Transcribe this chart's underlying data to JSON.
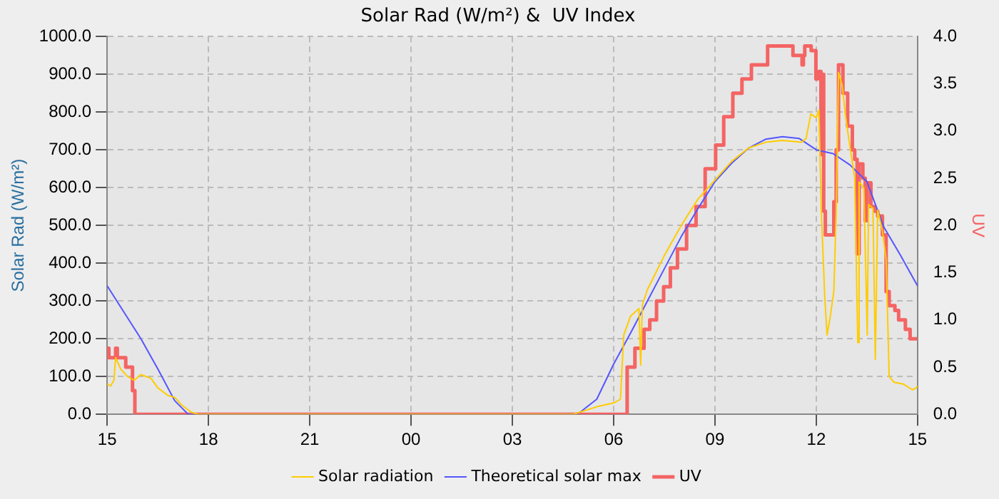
{
  "chart_data": {
    "type": "line",
    "title": "Solar Rad (W/m²) &  UV Index",
    "ylabel": "Solar Rad (W/m²)",
    "y2label": "UV",
    "xlim": [
      15,
      39
    ],
    "xticks": [
      {
        "value": 15,
        "label": "15"
      },
      {
        "value": 18,
        "label": "18"
      },
      {
        "value": 21,
        "label": "21"
      },
      {
        "value": 24,
        "label": "00"
      },
      {
        "value": 27,
        "label": "03"
      },
      {
        "value": 30,
        "label": "06"
      },
      {
        "value": 33,
        "label": "09"
      },
      {
        "value": 36,
        "label": "12"
      },
      {
        "value": 39,
        "label": "15"
      }
    ],
    "ylim": [
      0,
      1000
    ],
    "yticks": [
      {
        "value": 0,
        "label": "0.0"
      },
      {
        "value": 100,
        "label": "100.0"
      },
      {
        "value": 200,
        "label": "200.0"
      },
      {
        "value": 300,
        "label": "300.0"
      },
      {
        "value": 400,
        "label": "400.0"
      },
      {
        "value": 500,
        "label": "500.0"
      },
      {
        "value": 600,
        "label": "600.0"
      },
      {
        "value": 700,
        "label": "700.0"
      },
      {
        "value": 800,
        "label": "800.0"
      },
      {
        "value": 900,
        "label": "900.0"
      },
      {
        "value": 1000,
        "label": "1000.0"
      }
    ],
    "y2lim": [
      0,
      4
    ],
    "y2ticks": [
      {
        "value": 0,
        "label": "0.0"
      },
      {
        "value": 0.5,
        "label": "0.5"
      },
      {
        "value": 1,
        "label": "1.0"
      },
      {
        "value": 1.5,
        "label": "1.5"
      },
      {
        "value": 2,
        "label": "2.0"
      },
      {
        "value": 2.5,
        "label": "2.5"
      },
      {
        "value": 3,
        "label": "3.0"
      },
      {
        "value": 3.5,
        "label": "3.5"
      },
      {
        "value": 4,
        "label": "4.0"
      }
    ],
    "grid": true,
    "legend": "bottom",
    "marker": "none",
    "series": [
      {
        "name": "Solar radiation",
        "color": "#ffcc00",
        "x": [
          15,
          15.1,
          15.2,
          15.25,
          15.4,
          15.6,
          15.8,
          16,
          16.3,
          16.5,
          16.8,
          17,
          17.2,
          17.5,
          17.7,
          28.8,
          29.5,
          30,
          30.2,
          30.3,
          30.5,
          30.75,
          30.8,
          30.85,
          31,
          31.5,
          32,
          32.5,
          33,
          33.5,
          34,
          34.5,
          35,
          35.56,
          35.7,
          35.84,
          36,
          36.08,
          36.15,
          36.25,
          36.32,
          36.41,
          36.52,
          36.59,
          36.66,
          36.77,
          36.86,
          36.97,
          37.14,
          37.23,
          37.27,
          37.41,
          37.51,
          37.55,
          37.68,
          37.75,
          37.82,
          37.96,
          38.07,
          38.16,
          38.3,
          38.58,
          38.85,
          38.96,
          39
        ],
        "values": [
          80,
          75,
          90,
          150,
          120,
          100,
          90,
          105,
          95,
          70,
          50,
          45,
          25,
          5,
          0,
          0,
          20,
          30,
          40,
          210,
          260,
          280,
          130,
          290,
          330,
          420,
          500,
          570,
          620,
          670,
          705,
          720,
          725,
          720,
          730,
          795,
          785,
          805,
          540,
          315,
          210,
          255,
          325,
          530,
          905,
          870,
          795,
          725,
          625,
          190,
          615,
          600,
          210,
          555,
          545,
          145,
          540,
          485,
          410,
          100,
          85,
          80,
          65,
          70,
          75
        ]
      },
      {
        "name": "Theoretical solar max",
        "color": "#5555ff",
        "x": [
          15,
          16,
          16.5,
          17,
          17.4,
          28.8,
          29,
          29.5,
          30,
          30.5,
          31,
          31.5,
          32,
          32.5,
          33,
          33.5,
          34,
          34.5,
          35,
          35.5,
          36,
          36.5,
          37,
          37.5,
          38,
          38.5,
          39
        ],
        "values": [
          340,
          200,
          120,
          36,
          0,
          0,
          5,
          40,
          133,
          215,
          300,
          385,
          470,
          545,
          616,
          665,
          705,
          728,
          735,
          730,
          700,
          690,
          660,
          616,
          496,
          420,
          340
        ]
      },
      {
        "name": "UV",
        "color": "#f46464",
        "type": "step",
        "axis": "y2",
        "x": [
          15,
          15.05,
          15.25,
          15.3,
          15.55,
          15.75,
          15.82,
          30.38,
          30.4,
          30.63,
          30.9,
          31.07,
          31.27,
          31.48,
          31.68,
          31.89,
          32.16,
          32.44,
          32.71,
          33.02,
          33.26,
          33.53,
          33.8,
          34.08,
          34.35,
          34.56,
          35.31,
          35.58,
          35.62,
          35.66,
          35.85,
          35.99,
          36.04,
          36.08,
          36.14,
          36.18,
          36.22,
          36.27,
          36.49,
          36.52,
          36.59,
          36.66,
          36.74,
          36.79,
          36.93,
          37.07,
          37.14,
          37.21,
          37.27,
          37.38,
          37.45,
          37.51,
          37.62,
          37.73,
          37.82,
          37.96,
          38.07,
          38.16,
          38.33,
          38.44,
          38.64,
          38.78,
          38.99
        ],
        "values": [
          0.7,
          0.6,
          0.7,
          0.6,
          0.5,
          0.25,
          0,
          0,
          0.5,
          0.7,
          0.9,
          1,
          1.2,
          1.35,
          1.55,
          1.75,
          2,
          2.2,
          2.6,
          2.85,
          3.15,
          3.4,
          3.55,
          3.7,
          3.7,
          3.9,
          3.8,
          3.7,
          3.8,
          3.9,
          3.85,
          3.55,
          3.58,
          3.63,
          2.75,
          3.6,
          2.15,
          1.9,
          1.9,
          2.25,
          2.8,
          3.7,
          3.7,
          3.4,
          3.05,
          2.8,
          2.7,
          1.7,
          2.65,
          2.5,
          2.05,
          2.45,
          2.2,
          2.15,
          2.1,
          1.9,
          1.3,
          1.15,
          1.1,
          1,
          0.9,
          0.8,
          0.8
        ]
      }
    ]
  }
}
